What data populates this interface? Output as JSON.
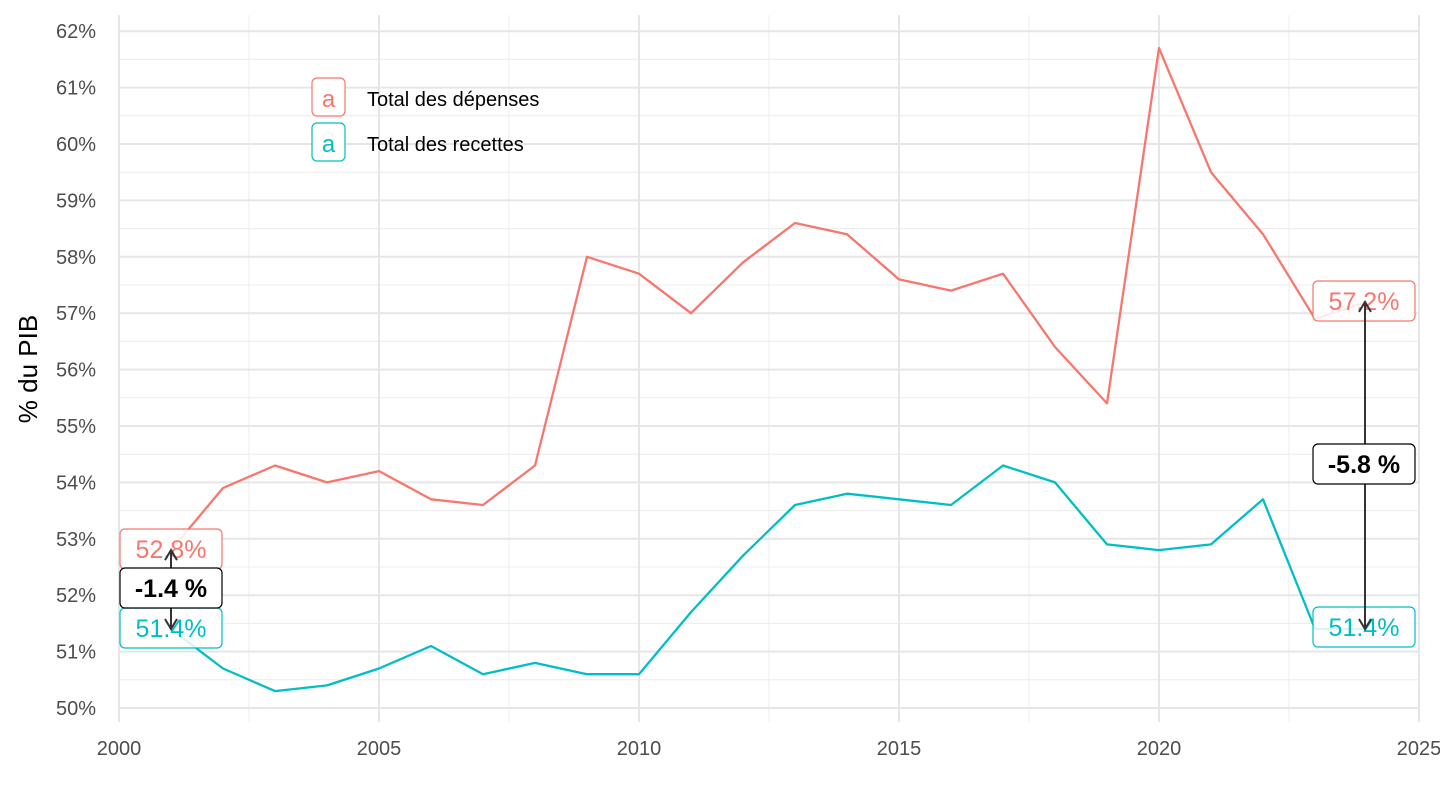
{
  "chart_data": {
    "type": "line",
    "title": "",
    "xlabel": "",
    "ylabel": "% du PIB",
    "xlim": [
      2000,
      2025
    ],
    "ylim": [
      50,
      62
    ],
    "x_ticks": [
      2000,
      2005,
      2010,
      2015,
      2020,
      2025
    ],
    "x_tick_labels": [
      "2000",
      "2005",
      "2010",
      "2015",
      "2020",
      "2025"
    ],
    "y_ticks": [
      50,
      51,
      52,
      53,
      54,
      55,
      56,
      57,
      58,
      59,
      60,
      61,
      62
    ],
    "y_tick_labels": [
      "50%",
      "51%",
      "52%",
      "53%",
      "54%",
      "55%",
      "56%",
      "57%",
      "58%",
      "59%",
      "60%",
      "61%",
      "62%"
    ],
    "grid": true,
    "legend_position": "top-left",
    "x": [
      2001,
      2002,
      2003,
      2004,
      2005,
      2006,
      2007,
      2008,
      2009,
      2010,
      2011,
      2012,
      2013,
      2014,
      2015,
      2016,
      2017,
      2018,
      2019,
      2020,
      2021,
      2022,
      2023,
      2024
    ],
    "series": [
      {
        "name": "Total des dépenses",
        "color": "#F8766D",
        "values": [
          52.8,
          53.9,
          54.3,
          54.0,
          54.2,
          53.7,
          53.6,
          54.3,
          58.0,
          57.7,
          57.0,
          57.9,
          58.6,
          58.4,
          57.6,
          57.4,
          57.7,
          56.4,
          55.4,
          61.7,
          59.5,
          58.4,
          56.9,
          57.2
        ]
      },
      {
        "name": "Total des recettes",
        "color": "#00BFC4",
        "values": [
          51.4,
          50.7,
          50.3,
          50.4,
          50.7,
          51.1,
          50.6,
          50.8,
          50.6,
          50.6,
          51.7,
          52.7,
          53.6,
          53.8,
          53.7,
          53.6,
          54.3,
          54.0,
          52.9,
          52.8,
          52.9,
          53.7,
          51.4,
          51.4
        ]
      }
    ],
    "annotations": [
      {
        "x": 2001,
        "top": 52.8,
        "bottom": 51.4,
        "top_label": "52.8%",
        "bottom_label": "51.4%",
        "diff_label": "-1.4 %"
      },
      {
        "x": 2024,
        "top": 57.2,
        "bottom": 51.4,
        "top_label": "57.2%",
        "bottom_label": "51.4%",
        "diff_label": "-5.8 %"
      }
    ],
    "legend": [
      {
        "key_glyph": "a",
        "label": "Total des dépenses",
        "color": "#F8766D"
      },
      {
        "key_glyph": "a",
        "label": "Total des recettes",
        "color": "#00BFC4"
      }
    ]
  }
}
